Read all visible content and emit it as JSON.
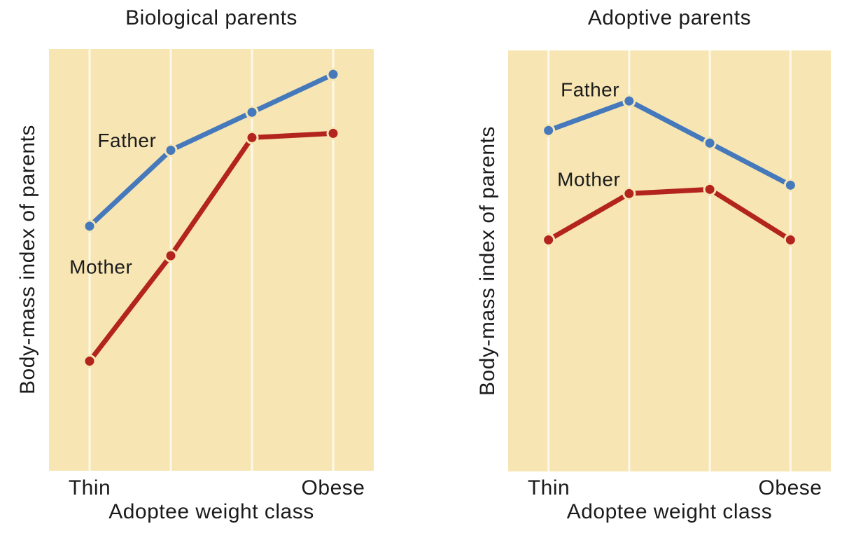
{
  "page": {
    "background": "#ffffff",
    "text_color": "#1b1b1b"
  },
  "styles": {
    "plot_background": "#f7e6b4",
    "gridline_color": "#fdf8e9",
    "father_color": "#4579bb",
    "mother_color": "#b3241f",
    "marker_radius": 8,
    "line_width": 7,
    "marker_halo_width": 3
  },
  "chart_data": [
    {
      "type": "line",
      "title": "Biological parents",
      "xlabel": "Adoptee weight class",
      "ylabel": "Body-mass index of parents",
      "x_tick_labels": [
        "Thin",
        "Obese"
      ],
      "x_note": "4 unlabeled adoptee weight categories from Thin to Obese; only the end categories are labeled; points sit on vertical gridlines at each category band center",
      "y_note": "y axis has no tick labels; values are relative estimates on a 0-100 scale read from pixel heights",
      "ylim": [
        0,
        100
      ],
      "grid": "vertical pale gridline at each of the 4 categories",
      "legend": "inline series labels beside the lines",
      "series": [
        {
          "name": "Father",
          "color": "#4579bb",
          "values": [
            58,
            76,
            85,
            94
          ],
          "label_pos": {
            "x": 0.24,
            "y": 0.22
          }
        },
        {
          "name": "Mother",
          "color": "#b3241f",
          "values": [
            26,
            51,
            79,
            80
          ],
          "label_pos": {
            "x": 0.16,
            "y": 0.52
          }
        }
      ]
    },
    {
      "type": "line",
      "title": "Adoptive parents",
      "xlabel": "Adoptee weight class",
      "ylabel": "Body-mass index of parents",
      "x_tick_labels": [
        "Thin",
        "Obese"
      ],
      "x_note": "4 unlabeled adoptee weight categories from Thin to Obese; only the end categories are labeled; points sit on vertical gridlines at each category band center",
      "y_note": "y axis has no tick labels; values are relative estimates on a 0-100 scale read from pixel heights",
      "ylim": [
        0,
        100
      ],
      "grid": "vertical pale gridline at each of the 4 categories",
      "legend": "inline series labels beside the lines",
      "series": [
        {
          "name": "Father",
          "color": "#4579bb",
          "values": [
            81,
            88,
            78,
            68
          ],
          "label_pos": {
            "x": 0.254,
            "y": 0.097
          }
        },
        {
          "name": "Mother",
          "color": "#b3241f",
          "values": [
            55,
            66,
            67,
            55
          ],
          "label_pos": {
            "x": 0.25,
            "y": 0.31
          }
        }
      ]
    }
  ]
}
